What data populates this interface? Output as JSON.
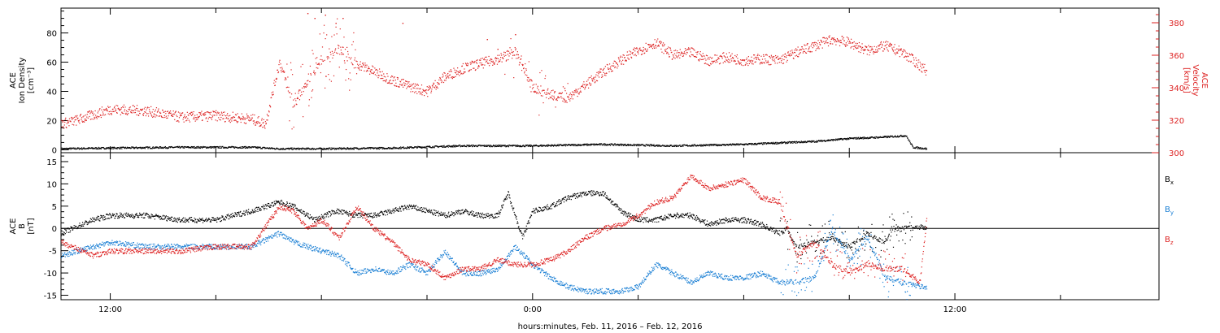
{
  "chart_data": [
    {
      "type": "scatter",
      "panel": "top",
      "xlabel": "hours:minutes, Feb. 11, 2016 – Feb. 12, 2016",
      "x_unit": "hours from 2016-02-11 00:00 UT",
      "x_ticks": [
        12,
        24,
        36
      ],
      "x_tick_labels": [
        "12:00",
        "0:00",
        "12:00"
      ],
      "xlim": [
        10.6,
        41.8
      ],
      "left_axis": {
        "label_lines": [
          "ACE",
          "Ion Density",
          "[cm⁻³]"
        ],
        "ylim": [
          -2,
          97
        ],
        "ticks": [
          0,
          20,
          40,
          60,
          80
        ],
        "tick_labels": [
          "0",
          "20",
          "40",
          "60",
          "80"
        ],
        "color": "#000000"
      },
      "right_axis": {
        "label_lines": [
          "ACE",
          "Velocity",
          "[km/s]"
        ],
        "ylim": [
          300,
          389
        ],
        "ticks": [
          300,
          320,
          340,
          360,
          380
        ],
        "tick_labels": [
          "300",
          "320",
          "340",
          "360",
          "380"
        ],
        "color": "#dd2222"
      },
      "series": [
        {
          "key": "density",
          "axis": "left",
          "color": "#000000",
          "x": [
            10.6,
            12,
            14,
            16,
            16.8,
            18,
            20,
            22,
            24,
            26,
            28,
            30,
            32,
            33,
            34,
            34.6,
            34.8,
            35.2
          ],
          "y": [
            1,
            1.5,
            2,
            2,
            1,
            1,
            1.5,
            3,
            3,
            4,
            3,
            4,
            6,
            8,
            9,
            10,
            2,
            1
          ]
        },
        {
          "key": "velocity",
          "axis": "right",
          "color": "#dd2222",
          "x": [
            10.6,
            11,
            12,
            13,
            14,
            15,
            16,
            16.4,
            16.8,
            17.2,
            17.6,
            18,
            18.5,
            19,
            19.5,
            20,
            20.5,
            21,
            21.5,
            22,
            22.5,
            23,
            23.5,
            24,
            24.5,
            25,
            25.5,
            26,
            26.5,
            27,
            27.5,
            28,
            28.5,
            29,
            29.5,
            30,
            30.5,
            31,
            31.5,
            32,
            32.5,
            33,
            33.5,
            34,
            34.5,
            35,
            35.2
          ],
          "y": [
            318,
            320,
            327,
            326,
            322,
            323,
            321,
            318,
            356,
            330,
            345,
            358,
            364,
            355,
            350,
            345,
            341,
            338,
            347,
            352,
            355,
            358,
            362,
            340,
            336,
            334,
            342,
            350,
            357,
            363,
            368,
            360,
            362,
            357,
            359,
            357,
            358,
            357,
            362,
            366,
            370,
            368,
            363,
            366,
            362,
            354,
            350
          ]
        },
        {
          "key": "velocity_spikes",
          "axis": "right",
          "color": "#dd2222",
          "x": [
            17.6,
            17.8,
            18.1,
            18.4,
            18.6,
            20.3,
            22.7,
            23.0,
            23.5,
            24.6,
            24.9
          ],
          "y": [
            386,
            383,
            385,
            380,
            383,
            380,
            370,
            364,
            373,
            334,
            340
          ]
        }
      ]
    },
    {
      "type": "scatter",
      "panel": "bottom",
      "xlabel": "hours:minutes, Feb. 11, 2016 – Feb. 12, 2016",
      "x_unit": "hours from 2016-02-11 00:00 UT",
      "x_ticks": [
        12,
        24,
        36
      ],
      "x_tick_labels": [
        "12:00",
        "0:00",
        "12:00"
      ],
      "xlim": [
        10.6,
        41.8
      ],
      "left_axis": {
        "label_lines": [
          "ACE",
          "B",
          "[nT]"
        ],
        "ylim": [
          -16,
          17
        ],
        "ticks": [
          -15,
          -10,
          -5,
          0,
          5,
          10,
          15
        ],
        "tick_labels": [
          "-15",
          "-10",
          "-5",
          "0",
          "5",
          "10",
          "15"
        ],
        "color": "#000000"
      },
      "zero_line": true,
      "series": [
        {
          "name": "Bx",
          "legend": "Bx",
          "color": "#000000",
          "x": [
            10.6,
            11.5,
            12,
            13,
            14,
            15,
            16,
            16.8,
            17.2,
            17.8,
            18.4,
            19,
            19.5,
            20,
            20.5,
            21,
            21.5,
            22,
            22.5,
            23,
            23.3,
            23.7,
            24,
            24.5,
            25,
            25.5,
            26,
            26.5,
            27,
            27.5,
            28,
            28.5,
            29,
            29.5,
            30,
            30.5,
            31,
            31.2,
            31.5,
            32,
            32.5,
            33,
            33.5,
            34,
            34.2,
            34.5,
            35,
            35.2
          ],
          "y": [
            -1,
            2,
            3,
            3,
            2,
            2,
            4,
            6,
            5,
            2,
            4,
            3,
            3,
            4,
            5,
            4,
            3,
            4,
            3,
            3,
            8,
            -2,
            4,
            5,
            7,
            8,
            8,
            4,
            2,
            2,
            3,
            3,
            1,
            2,
            2,
            1,
            -1,
            0,
            -4,
            -3,
            -2,
            -4,
            -1,
            -3,
            0,
            0,
            0.5,
            0
          ]
        },
        {
          "name": "By",
          "legend": "By",
          "color": "#1a7fd4",
          "x": [
            10.6,
            11.5,
            12,
            13,
            14,
            15,
            16,
            16.8,
            17.2,
            18,
            18.5,
            19,
            19.5,
            20,
            20.5,
            21,
            21.5,
            22,
            22.5,
            23,
            23.5,
            24,
            24.5,
            25,
            25.5,
            26,
            26.5,
            27,
            27.5,
            28,
            28.5,
            29,
            29.5,
            30,
            30.5,
            31,
            31.5,
            32,
            32.5,
            33,
            33.5,
            34,
            34.5,
            35,
            35.2
          ],
          "y": [
            -6,
            -4,
            -3,
            -4,
            -4,
            -4,
            -4,
            -1,
            -3,
            -5,
            -6,
            -10,
            -9,
            -10,
            -8,
            -10,
            -5,
            -10,
            -10,
            -9,
            -4,
            -8,
            -11,
            -13,
            -14,
            -14,
            -14,
            -13,
            -8,
            -10,
            -12,
            -10,
            -11,
            -11,
            -10,
            -12,
            -12,
            -11,
            0,
            -7,
            -2,
            -11,
            -12,
            -13,
            -13
          ]
        },
        {
          "name": "Bz",
          "legend": "Bz",
          "color": "#dd2222",
          "x": [
            10.6,
            11.5,
            12,
            13,
            14,
            15,
            16,
            16.8,
            17.2,
            17.6,
            18,
            18.5,
            19,
            19.5,
            20,
            20.5,
            21,
            21.5,
            22,
            22.5,
            23,
            23.5,
            24,
            24.5,
            25,
            25.5,
            26,
            26.5,
            27,
            27.5,
            28,
            28.5,
            29,
            29.5,
            30,
            30.5,
            31,
            31.5,
            32,
            32.5,
            33,
            33.5,
            34,
            34.5,
            35,
            35.2
          ],
          "y": [
            -3,
            -6,
            -5,
            -5,
            -5,
            -4,
            -4,
            5,
            4,
            0,
            2,
            -2,
            5,
            0,
            -3,
            -7,
            -8,
            -11,
            -9,
            -9,
            -7,
            -8,
            -8,
            -7,
            -5,
            -2,
            0,
            1,
            3,
            6,
            7,
            12,
            9,
            10,
            11,
            7,
            6,
            -6,
            -3,
            -8,
            -10,
            -8,
            -9,
            -9,
            -12,
            3
          ]
        }
      ]
    }
  ],
  "layout_text": {
    "xlabel": "hours:minutes, Feb. 11, 2016 – Feb. 12, 2016",
    "legend_bx_main": "B",
    "legend_bx_sub": "x",
    "legend_by_main": "B",
    "legend_by_sub": "y",
    "legend_bz_main": "B",
    "legend_bz_sub": "z"
  }
}
